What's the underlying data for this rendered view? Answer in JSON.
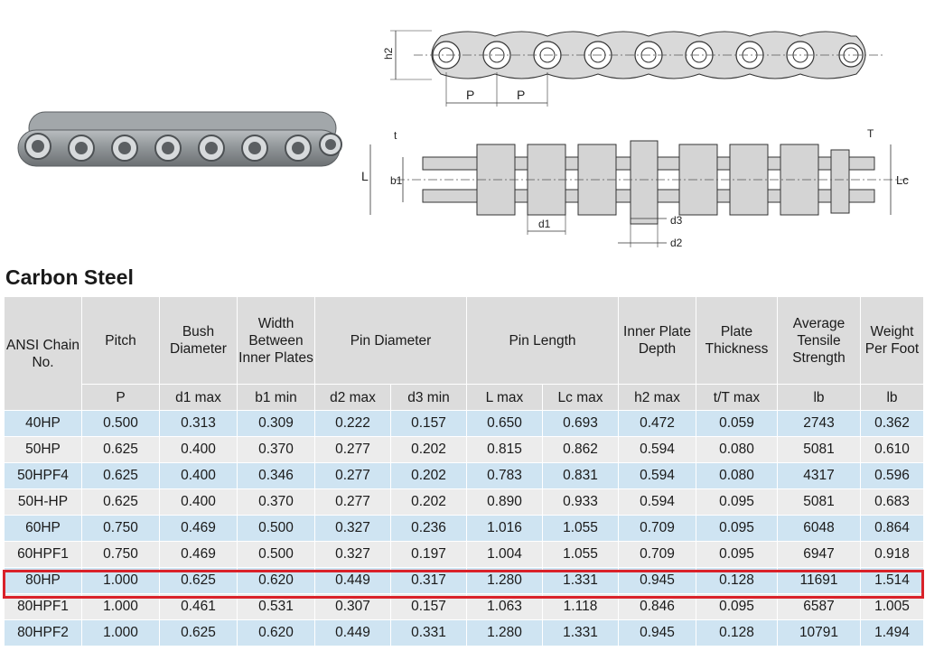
{
  "diagram": {
    "top_labels": {
      "h2": "h2",
      "p1": "P",
      "p2": "P"
    },
    "side_labels": {
      "t": "t",
      "T": "T",
      "L": "L",
      "b1": "b1",
      "Lc": "Lc",
      "d1": "d1",
      "d3": "d3",
      "d2": "d2"
    }
  },
  "section_title": "Carbon Steel",
  "table": {
    "headers": [
      "ANSI Chain No.",
      "Pitch",
      "Bush Diameter",
      "Width Between Inner Plates",
      "Pin Diameter",
      "Pin Length",
      "Inner Plate Depth",
      "Plate Thickness",
      "Average Tensile Strength",
      "Weight Per Foot"
    ],
    "subheaders": [
      "P",
      "d1 max",
      "b1 min",
      "d2 max",
      "d3 min",
      "L max",
      "Lc max",
      "h2 max",
      "t/T max",
      "lb",
      "lb"
    ],
    "rows": [
      [
        "40HP",
        "0.500",
        "0.313",
        "0.309",
        "0.222",
        "0.157",
        "0.650",
        "0.693",
        "0.472",
        "0.059",
        "2743",
        "0.362"
      ],
      [
        "50HP",
        "0.625",
        "0.400",
        "0.370",
        "0.277",
        "0.202",
        "0.815",
        "0.862",
        "0.594",
        "0.080",
        "5081",
        "0.610"
      ],
      [
        "50HPF4",
        "0.625",
        "0.400",
        "0.346",
        "0.277",
        "0.202",
        "0.783",
        "0.831",
        "0.594",
        "0.080",
        "4317",
        "0.596"
      ],
      [
        "50H-HP",
        "0.625",
        "0.400",
        "0.370",
        "0.277",
        "0.202",
        "0.890",
        "0.933",
        "0.594",
        "0.095",
        "5081",
        "0.683"
      ],
      [
        "60HP",
        "0.750",
        "0.469",
        "0.500",
        "0.327",
        "0.236",
        "1.016",
        "1.055",
        "0.709",
        "0.095",
        "6048",
        "0.864"
      ],
      [
        "60HPF1",
        "0.750",
        "0.469",
        "0.500",
        "0.327",
        "0.197",
        "1.004",
        "1.055",
        "0.709",
        "0.095",
        "6947",
        "0.918"
      ],
      [
        "80HP",
        "1.000",
        "0.625",
        "0.620",
        "0.449",
        "0.317",
        "1.280",
        "1.331",
        "0.945",
        "0.128",
        "11691",
        "1.514"
      ],
      [
        "80HPF1",
        "1.000",
        "0.461",
        "0.531",
        "0.307",
        "0.157",
        "1.063",
        "1.118",
        "0.846",
        "0.095",
        "6587",
        "1.005"
      ],
      [
        "80HPF2",
        "1.000",
        "0.625",
        "0.620",
        "0.449",
        "0.331",
        "1.280",
        "1.331",
        "0.945",
        "0.128",
        "10791",
        "1.494"
      ]
    ]
  },
  "highlight": {
    "row_label": "80HP",
    "color": "#d9222a"
  }
}
